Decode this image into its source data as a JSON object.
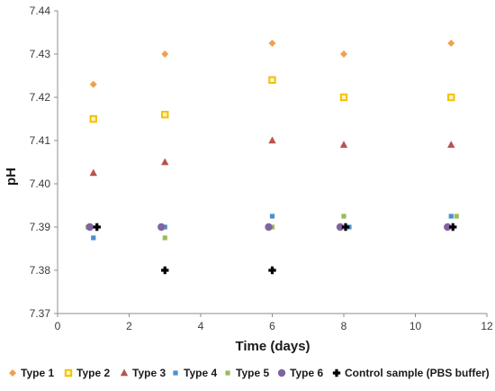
{
  "chart_data": {
    "type": "scatter",
    "xlabel": "Time (days)",
    "ylabel": "pH",
    "xlim": [
      0,
      12
    ],
    "ylim": [
      7.37,
      7.44
    ],
    "x_ticks": [
      0,
      2,
      4,
      6,
      8,
      10,
      12
    ],
    "x_tick_labels": [
      "0",
      "2",
      "4",
      "6",
      "8",
      "10",
      "12"
    ],
    "y_ticks": [
      7.37,
      7.38,
      7.39,
      7.4,
      7.41,
      7.42,
      7.43,
      7.44
    ],
    "y_tick_labels": [
      "7.37",
      "7.38",
      "7.39",
      "7.40",
      "7.41",
      "7.42",
      "7.43",
      "7.44"
    ],
    "grid": false,
    "legend_position": "bottom",
    "series": [
      {
        "name": "Type 1",
        "marker": "diamond",
        "color": "#F0A050",
        "x": [
          1,
          3,
          6,
          8,
          11
        ],
        "y": [
          7.423,
          7.43,
          7.4325,
          7.43,
          7.4325
        ]
      },
      {
        "name": "Type 2",
        "marker": "square-ring",
        "color": "#F5C000",
        "x": [
          1,
          3,
          6,
          8,
          11
        ],
        "y": [
          7.415,
          7.416,
          7.424,
          7.42,
          7.42
        ]
      },
      {
        "name": "Type 3",
        "marker": "triangle",
        "color": "#B85450",
        "x": [
          1,
          3,
          6,
          8,
          11
        ],
        "y": [
          7.4025,
          7.405,
          7.41,
          7.409,
          7.409
        ]
      },
      {
        "name": "Type 4",
        "marker": "square",
        "color": "#4A90D0",
        "x": [
          1,
          3,
          6,
          8.15,
          11
        ],
        "y": [
          7.3875,
          7.39,
          7.3925,
          7.39,
          7.3925
        ]
      },
      {
        "name": "Type 5",
        "marker": "square",
        "color": "#9BBB59",
        "x": [
          0.85,
          3,
          6,
          8,
          11.15
        ],
        "y": [
          7.39,
          7.3875,
          7.39,
          7.3925,
          7.3925
        ]
      },
      {
        "name": "Type 6",
        "marker": "circle",
        "color": "#8064A2",
        "x": [
          0.9,
          2.9,
          5.9,
          7.9,
          10.9
        ],
        "y": [
          7.39,
          7.39,
          7.39,
          7.39,
          7.39
        ]
      },
      {
        "name": "Control sample (PBS buffer)",
        "marker": "cross",
        "color": "#000000",
        "x": [
          1.1,
          3,
          6,
          8.05,
          11.05
        ],
        "y": [
          7.39,
          7.38,
          7.38,
          7.39,
          7.39
        ]
      }
    ]
  }
}
